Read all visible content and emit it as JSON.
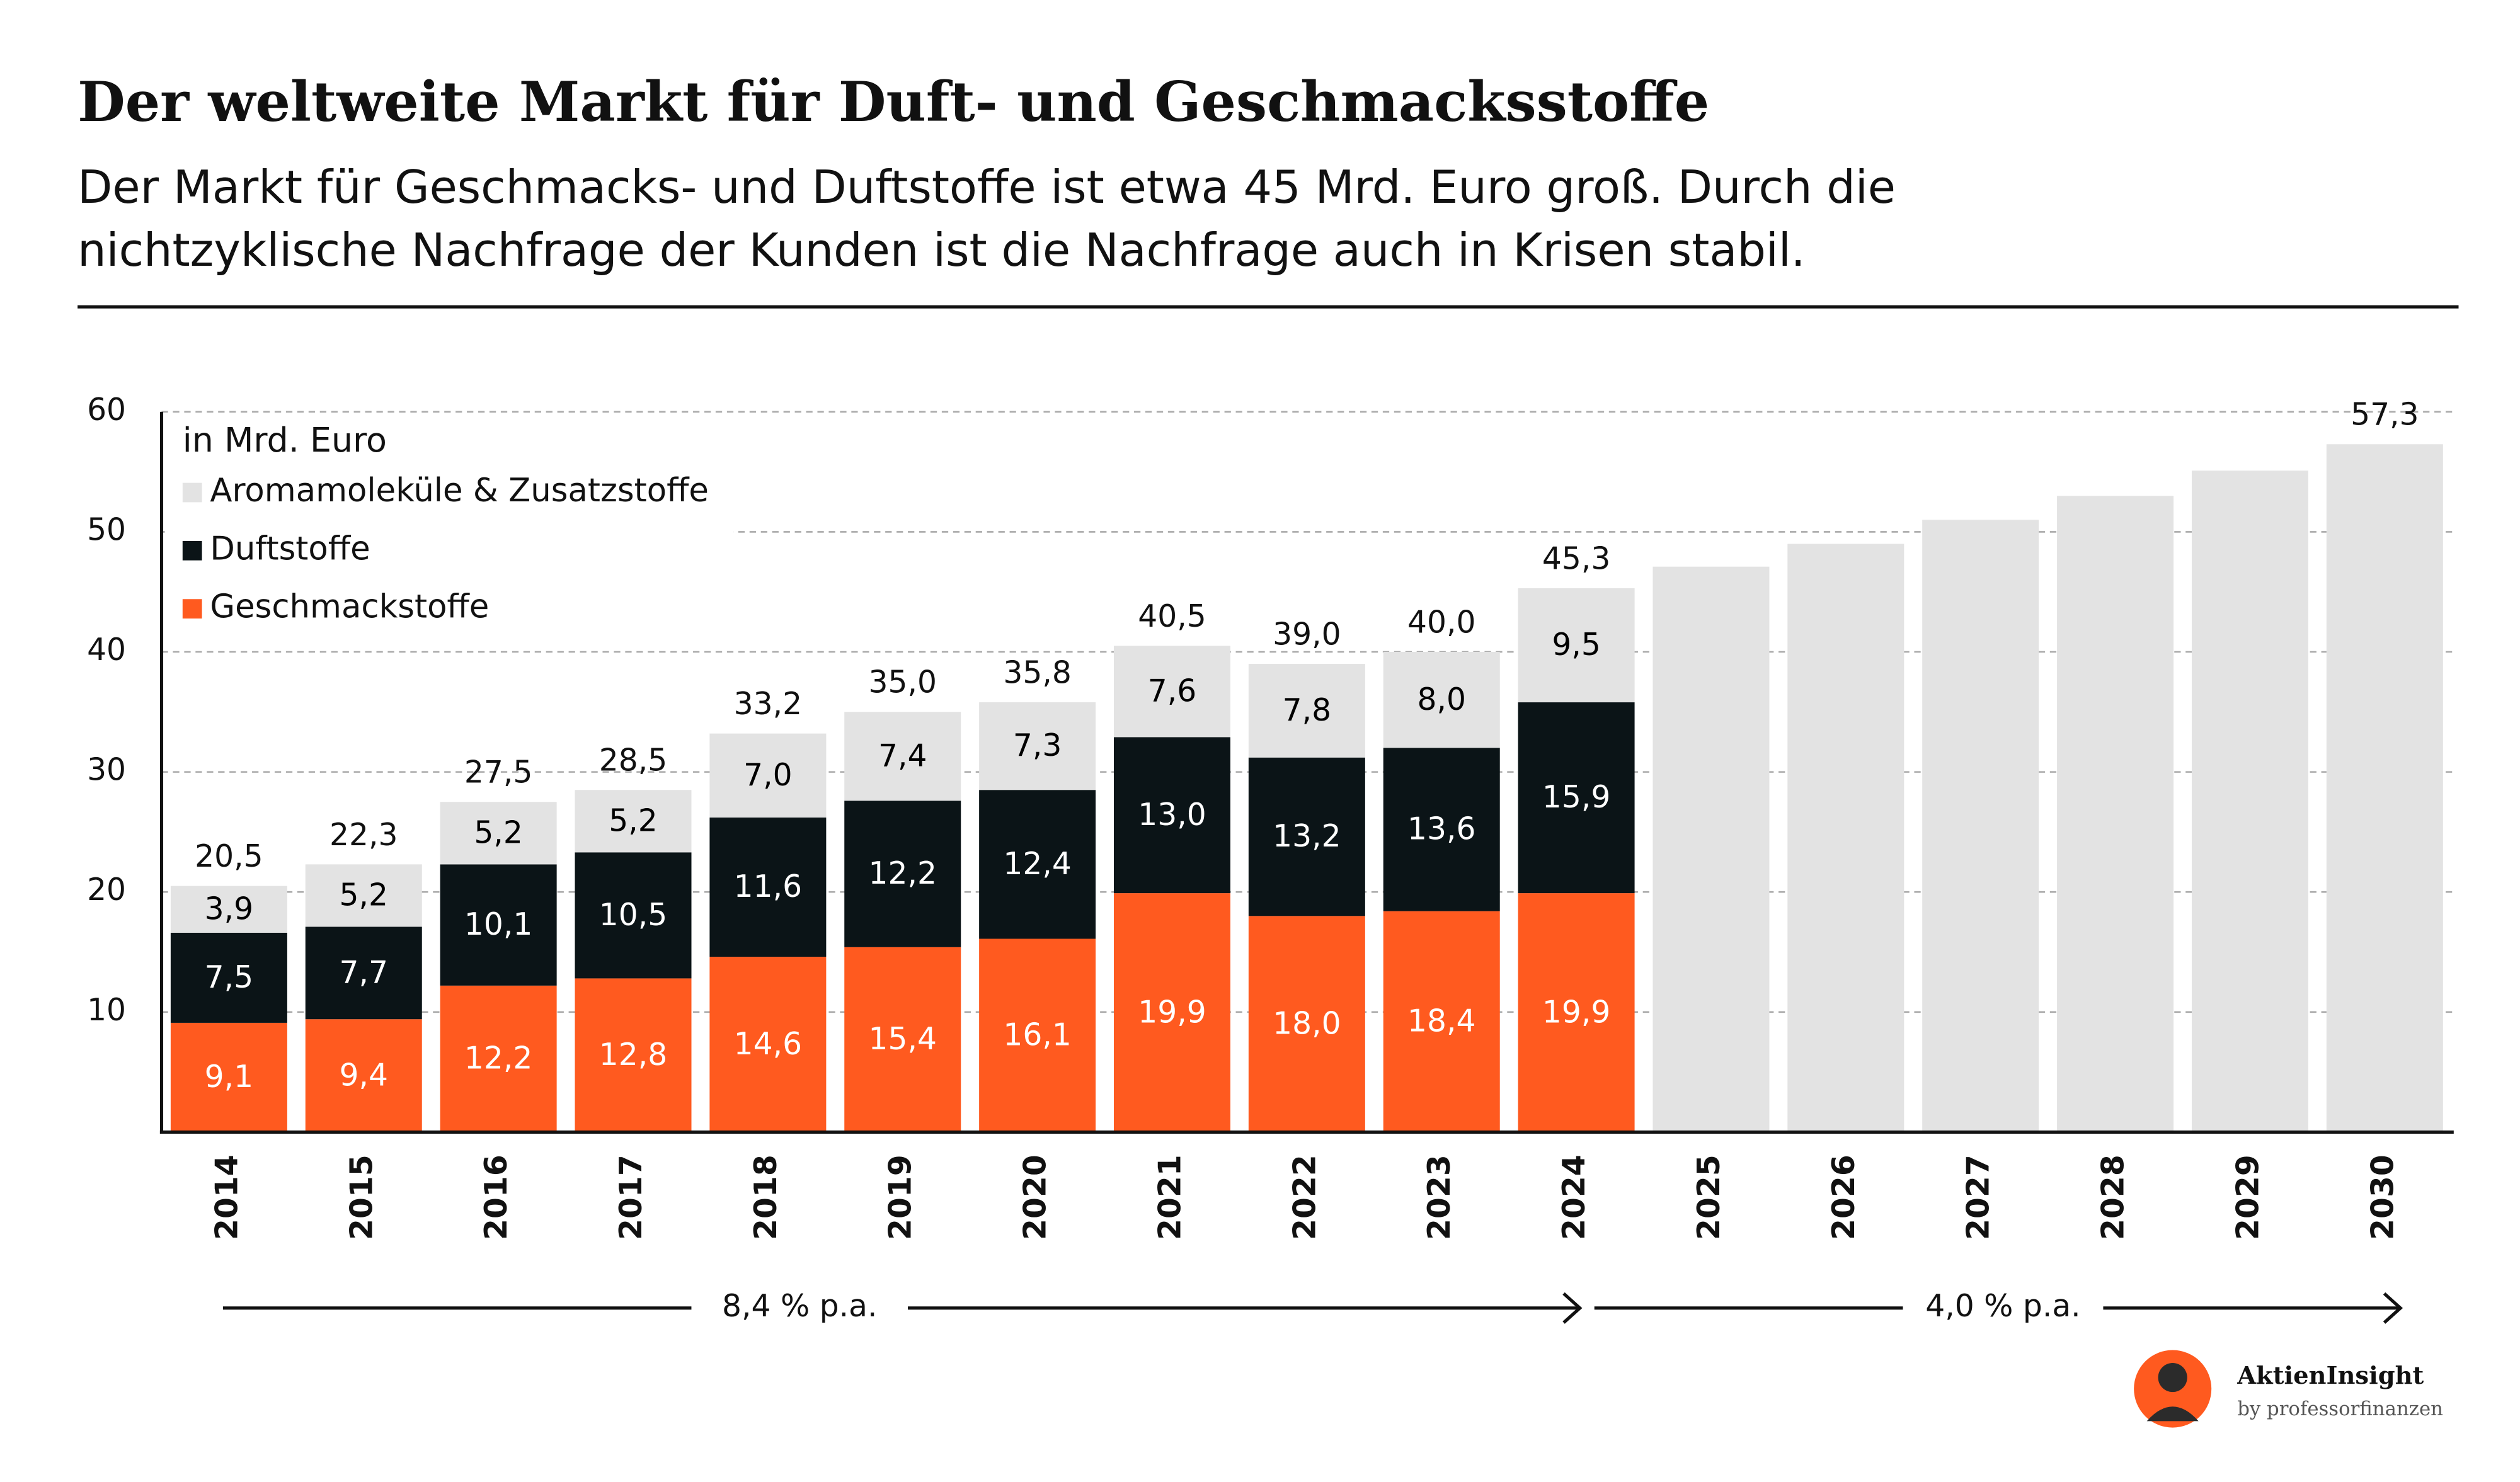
{
  "chart_data": {
    "type": "stacked_bar",
    "title": "Der weltweite Markt für Duft- und Geschmacksstoffe",
    "subtitle_lines": [
      "Der Markt für Geschmacks- und Duftstoffe ist etwa 45 Mrd. Euro groß. Durch die",
      "nichtzyklische Nachfrage der Kunden ist die Nachfrage auch in Krisen stabil."
    ],
    "unit_label": "in Mrd. Euro",
    "categories": [
      "2014",
      "2015",
      "2016",
      "2017",
      "2018",
      "2019",
      "2020",
      "2021",
      "2022",
      "2023",
      "2024",
      "2025",
      "2026",
      "2027",
      "2028",
      "2029",
      "2030"
    ],
    "series": [
      {
        "name": "Geschmackstoffe",
        "color": "#ff5a1f",
        "label_color": "#ffffff",
        "values": [
          9.1,
          9.4,
          12.2,
          12.8,
          14.6,
          15.4,
          16.1,
          19.9,
          18.0,
          18.4,
          19.9,
          null,
          null,
          null,
          null,
          null,
          null
        ],
        "value_labels": [
          "9,1",
          "9,4",
          "12,2",
          "12,8",
          "14,6",
          "15,4",
          "16,1",
          "19,9",
          "18,0",
          "18,4",
          "19,9",
          null,
          null,
          null,
          null,
          null,
          null
        ]
      },
      {
        "name": "Duftstoffe",
        "color": "#0b1417",
        "label_color": "#ffffff",
        "values": [
          7.5,
          7.7,
          10.1,
          10.5,
          11.6,
          12.2,
          12.4,
          13.0,
          13.2,
          13.6,
          15.9,
          null,
          null,
          null,
          null,
          null,
          null
        ],
        "value_labels": [
          "7,5",
          "7,7",
          "10,1",
          "10,5",
          "11,6",
          "12,2",
          "12,4",
          "13,0",
          "13,2",
          "13,6",
          "15,9",
          null,
          null,
          null,
          null,
          null,
          null
        ]
      },
      {
        "name": "Aromamoleküle & Zusatzstoffe",
        "color": "#e3e3e3",
        "label_color": "#000000",
        "values": [
          3.9,
          5.2,
          5.2,
          5.2,
          7.0,
          7.4,
          7.3,
          7.6,
          7.8,
          8.0,
          9.5,
          null,
          null,
          null,
          null,
          null,
          null
        ],
        "value_labels": [
          "3,9",
          "5,2",
          "5,2",
          "5,2",
          "7,0",
          "7,4",
          "7,3",
          "7,6",
          "7,8",
          "8,0",
          "9,5",
          null,
          null,
          null,
          null,
          null,
          null
        ]
      }
    ],
    "totals": {
      "color": "#e3e3e3",
      "values": [
        20.5,
        22.3,
        27.5,
        28.5,
        33.2,
        35.0,
        35.8,
        40.5,
        39.0,
        40.0,
        45.3,
        47.1,
        49.0,
        51.0,
        53.0,
        55.1,
        57.3
      ],
      "value_labels": [
        "20,5",
        "22,3",
        "27,5",
        "28,5",
        "33,2",
        "35,0",
        "35,8",
        "40,5",
        "39,0",
        "40,0",
        "45,3",
        null,
        null,
        null,
        null,
        null,
        "57,3"
      ]
    },
    "ylim": [
      0,
      60
    ],
    "yticks": [
      10,
      20,
      30,
      40,
      50,
      60
    ],
    "grid": true,
    "growth_rates": [
      "8,4 % p.a.",
      "4,0 % p.a."
    ],
    "brand": "AktienInsight",
    "brand_sub": "by professorfinanzen"
  }
}
